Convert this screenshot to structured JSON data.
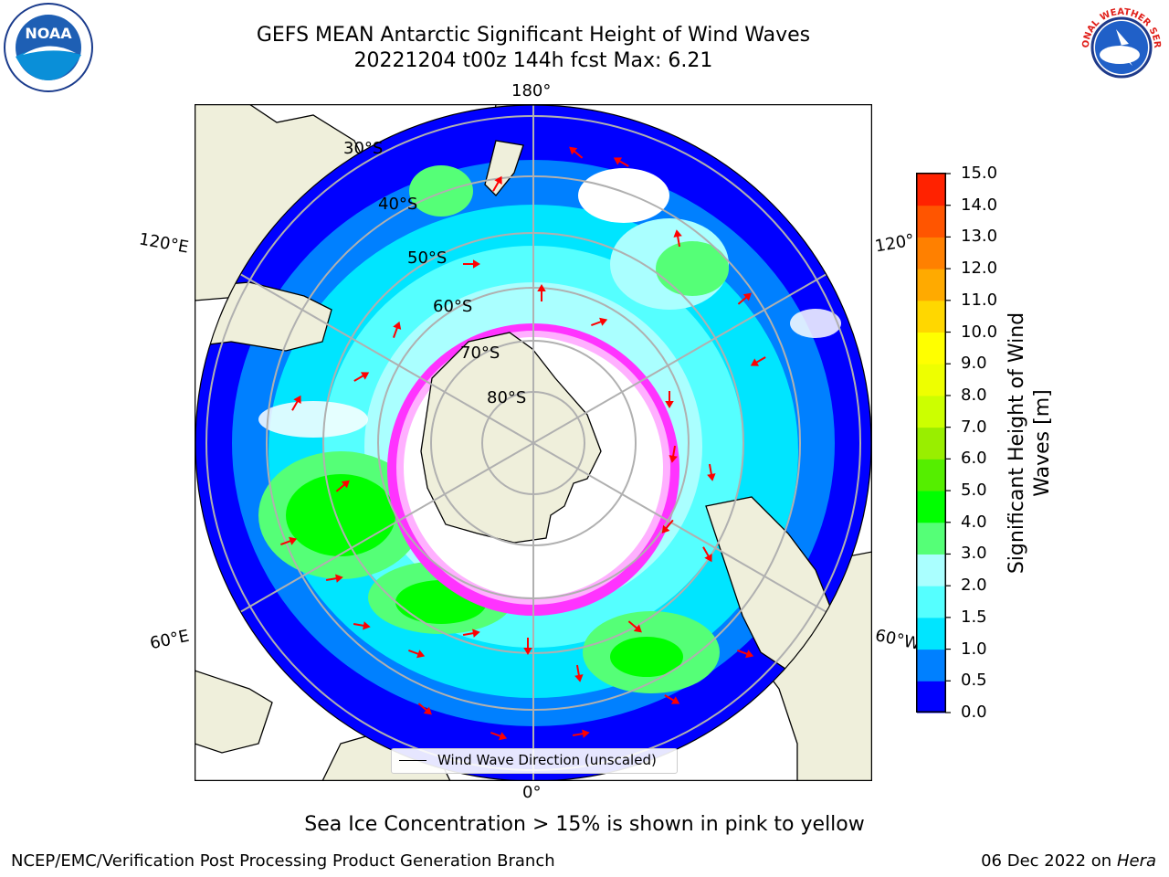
{
  "title": {
    "line1": "GEFS MEAN Antarctic Significant Height of Wind Waves",
    "line2": "20221204 t00z 144h fcst   Max: 6.21"
  },
  "map": {
    "projection": "south-polar-stereographic",
    "lon_labels": {
      "top": "180°",
      "bottom": "0°",
      "left_upper": "120°E",
      "left_lower": "60°E",
      "right_upper": "120°",
      "right_lower": "60°W"
    },
    "lat_labels": [
      "30°S",
      "40°S",
      "50°S",
      "60°S",
      "70°S",
      "80°S"
    ],
    "colors": {
      "ocean_low": "#0000ff",
      "ocean_mid": "#00e5ff",
      "wave_green": "#33ff33",
      "land": "#efefdb",
      "ice": "#ffffff",
      "ice_edge": "#ff33ff",
      "arrow": "#ff0000"
    }
  },
  "legend": {
    "label": "Wind Wave Direction (unscaled)"
  },
  "colorbar": {
    "label": "Significant Height of Wind Waves [m]",
    "ticks": [
      "0.0",
      "0.5",
      "1.0",
      "1.5",
      "2.0",
      "3.0",
      "4.0",
      "5.0",
      "6.0",
      "7.0",
      "8.0",
      "9.0",
      "10.0",
      "11.0",
      "12.0",
      "13.0",
      "14.0",
      "15.0"
    ],
    "colors": [
      "#0000ff",
      "#0080ff",
      "#00e5ff",
      "#55ffff",
      "#aaffff",
      "#55ff77",
      "#00ff00",
      "#55ee00",
      "#99ee00",
      "#ccff00",
      "#eeff00",
      "#ffff00",
      "#ffd700",
      "#ffaa00",
      "#ff8000",
      "#ff5500",
      "#ff2200"
    ]
  },
  "footer": {
    "ice_note": "Sea Ice Concentration > 15% is shown in pink to yellow",
    "credit": "NCEP/EMC/Verification Post Processing Product Generation Branch",
    "date": "06 Dec 2022 on",
    "machine": "Hera"
  },
  "logos": {
    "left": "NOAA",
    "right": "NATIONAL WEATHER SERVICE"
  }
}
